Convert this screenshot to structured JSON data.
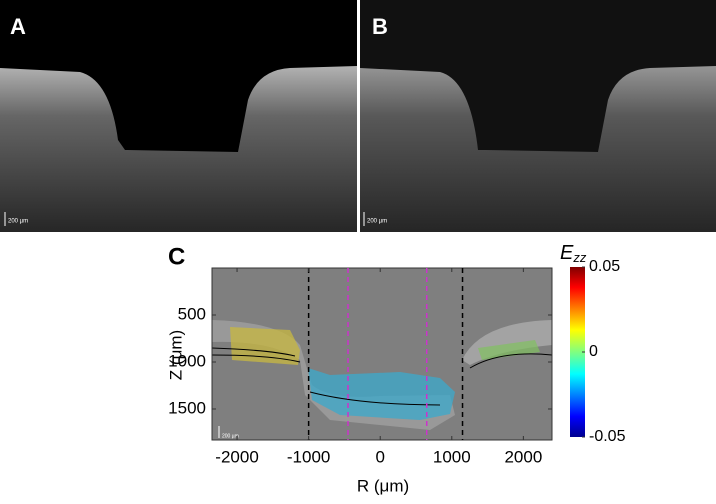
{
  "panels": [
    {
      "label": "A",
      "scale_bar": "200 µm"
    },
    {
      "label": "B",
      "scale_bar": "200 µm"
    }
  ],
  "chart_data": {
    "type": "image",
    "panel_label": "C",
    "xlabel": "R (μm)",
    "ylabel": "Z (μm)",
    "xlim": [
      -2350,
      2400
    ],
    "xticks": [
      -2000,
      -1000,
      0,
      1000,
      2000
    ],
    "ylim": [
      1830,
      0
    ],
    "yticks": [
      500,
      1000,
      1500
    ],
    "reference_lines": [
      {
        "x": -1000,
        "color": "#000000"
      },
      {
        "x": -450,
        "color": "#cc33cc"
      },
      {
        "x": 650,
        "color": "#cc33cc"
      },
      {
        "x": 1150,
        "color": "#000000"
      }
    ],
    "scale_bar": "200 µm",
    "colorbar": {
      "title": "E",
      "subscript": "zz",
      "lim": [
        -0.05,
        0.05
      ],
      "ticks": [
        0.05,
        0,
        -0.05
      ]
    }
  }
}
